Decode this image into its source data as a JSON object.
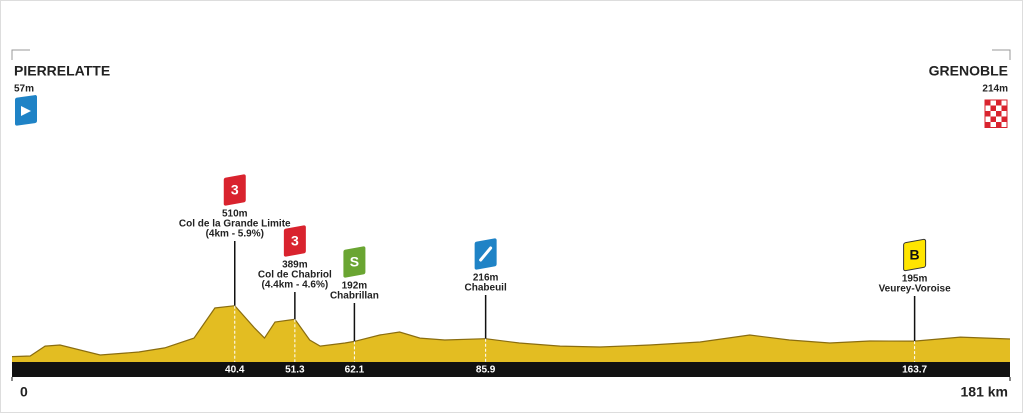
{
  "chart_data": {
    "type": "area",
    "color": "#e3bd22",
    "x": [
      0,
      3.3,
      6,
      8.7,
      16,
      23,
      27.7,
      33,
      36.8,
      40.4,
      44,
      45.8,
      47.7,
      51.3,
      54,
      55.9,
      60.4,
      62.1,
      66.7,
      70.3,
      74,
      78.5,
      85.9,
      92,
      99.4,
      106.6,
      115.7,
      124.8,
      133.8,
      141,
      148.3,
      155.6,
      163.7,
      172,
      181
    ],
    "values": [
      57,
      62,
      150,
      160,
      71,
      98,
      134,
      222,
      490,
      510,
      311,
      222,
      365,
      389,
      205,
      150,
      178,
      192,
      249,
      276,
      222,
      205,
      216,
      178,
      150,
      142,
      160,
      187,
      249,
      205,
      178,
      196,
      195,
      231,
      214
    ],
    "xlim": [
      0,
      181
    ],
    "xticks": [
      0,
      {
        "value": 181,
        "label": "181 km"
      }
    ],
    "ylim": [
      0,
      3000
    ],
    "start": {
      "name": "PIERRELATTE",
      "elevation": 57,
      "elevation_label": "57m",
      "color": "#1f83c6"
    },
    "finish": {
      "name": "GRENOBLE",
      "elevation": 214,
      "elevation_label": "214m",
      "color": "#d9232e"
    },
    "markers": [
      {
        "km": 40.4,
        "elevation": 510,
        "elevation_label": "510m",
        "name": "Col de la Grande Limite",
        "detail": "(4km - 5.9%)",
        "badge": "3",
        "color": "#d9232e"
      },
      {
        "km": 51.3,
        "elevation": 389,
        "elevation_label": "389m",
        "name": "Col de Chabriol",
        "detail": "(4.4km - 4.6%)",
        "badge": "3",
        "color": "#d9232e"
      },
      {
        "km": 62.1,
        "elevation": 192,
        "elevation_label": "192m",
        "name": "Chabrillan",
        "badge": "S",
        "color": "#6aa532"
      },
      {
        "km": 85.9,
        "elevation": 216,
        "elevation_label": "216m",
        "name": "Chabeuil",
        "color": "#1f83c6"
      },
      {
        "km": 163.7,
        "elevation": 195,
        "elevation_label": "195m",
        "name": "Veurey-Voroise",
        "badge": "B",
        "color": "#ffe500"
      }
    ]
  }
}
